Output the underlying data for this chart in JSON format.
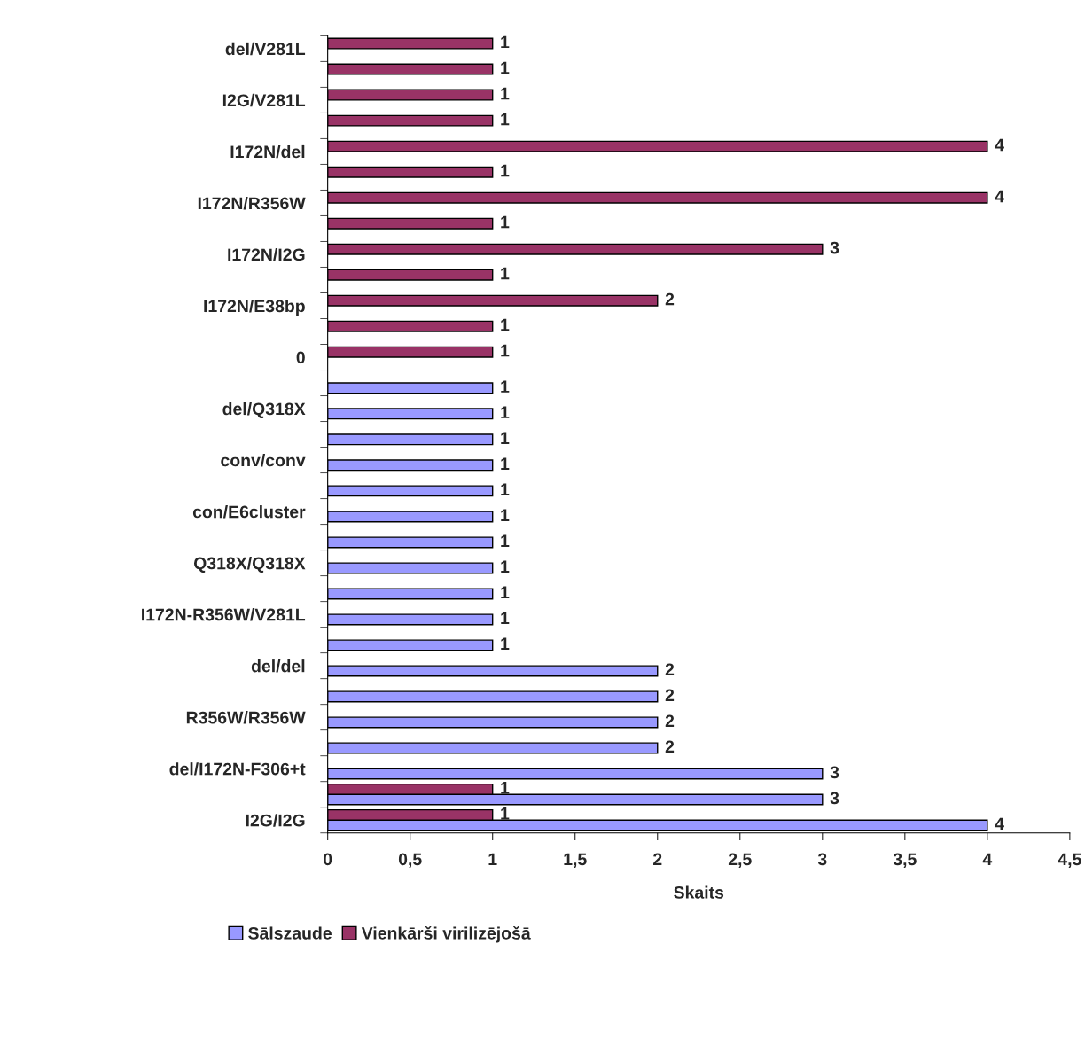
{
  "chart_data": {
    "type": "bar",
    "orientation": "horizontal",
    "xlabel": "Skaits",
    "categories": [
      "del/V281L",
      null,
      "I2G/V281L",
      null,
      "I172N/del",
      null,
      "I172N/R356W",
      null,
      "I172N/I2G",
      null,
      "I172N/E38bp",
      null,
      "0",
      null,
      "del/Q318X",
      null,
      "conv/conv",
      null,
      "con/E6cluster",
      null,
      "Q318X/Q318X",
      null,
      "I172N-R356W/V281L",
      null,
      "del/del",
      null,
      "R356W/R356W",
      null,
      "del/I172N-F306+t",
      null,
      "I2G/I2G"
    ],
    "series": [
      {
        "name": "Sālszaude",
        "color": "#9999ff",
        "values": [
          null,
          null,
          null,
          null,
          null,
          null,
          null,
          null,
          null,
          null,
          null,
          null,
          null,
          1,
          1,
          1,
          1,
          1,
          1,
          1,
          1,
          1,
          1,
          1,
          2,
          2,
          2,
          2,
          3,
          3,
          4
        ]
      },
      {
        "name": "Vienkārši virilizējošā",
        "color": "#993366",
        "values": [
          1,
          1,
          1,
          1,
          4,
          1,
          4,
          1,
          3,
          1,
          2,
          1,
          1,
          null,
          null,
          null,
          null,
          null,
          null,
          null,
          null,
          null,
          null,
          null,
          null,
          null,
          null,
          null,
          null,
          1,
          1
        ]
      }
    ],
    "xlim": [
      0,
      4.5
    ],
    "xticks": [
      0,
      {
        "value": 0.5,
        "label": "0,5"
      },
      1,
      {
        "value": 1.5,
        "label": "1,5"
      },
      2,
      {
        "value": 2.5,
        "label": "2,5"
      },
      3,
      {
        "value": 3.5,
        "label": "3,5"
      },
      4,
      {
        "value": 4.5,
        "label": "4,5"
      }
    ],
    "data_labels": true,
    "grid": false,
    "legend": "bottom"
  }
}
